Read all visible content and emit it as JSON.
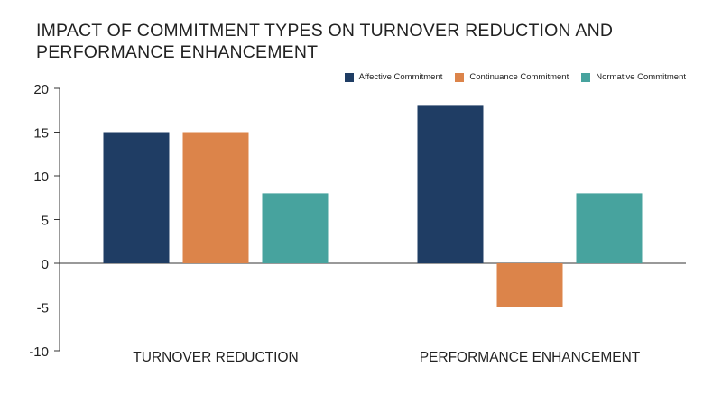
{
  "chart_data": {
    "type": "bar",
    "title_line1": "IMPACT OF COMMITMENT TYPES ON TURNOVER REDUCTION AND",
    "title_line2": "PERFORMANCE ENHANCEMENT",
    "categories": [
      "TURNOVER REDUCTION",
      "PERFORMANCE ENHANCEMENT"
    ],
    "series": [
      {
        "name": "Affective Commitment",
        "values": [
          15,
          18
        ],
        "color": "#1f3d64"
      },
      {
        "name": "Continuance Commitment",
        "values": [
          15,
          -5
        ],
        "color": "#dc844a"
      },
      {
        "name": "Normative Commitment",
        "values": [
          8,
          8
        ],
        "color": "#47a39e"
      }
    ],
    "ylim": [
      -10,
      20
    ],
    "yticks": [
      "20",
      "15",
      "10",
      "5",
      "0",
      "-5",
      "-10"
    ],
    "ytick_values": [
      20,
      15,
      10,
      5,
      0,
      -5,
      -10
    ],
    "legend_position": "top-right",
    "grid": false
  }
}
